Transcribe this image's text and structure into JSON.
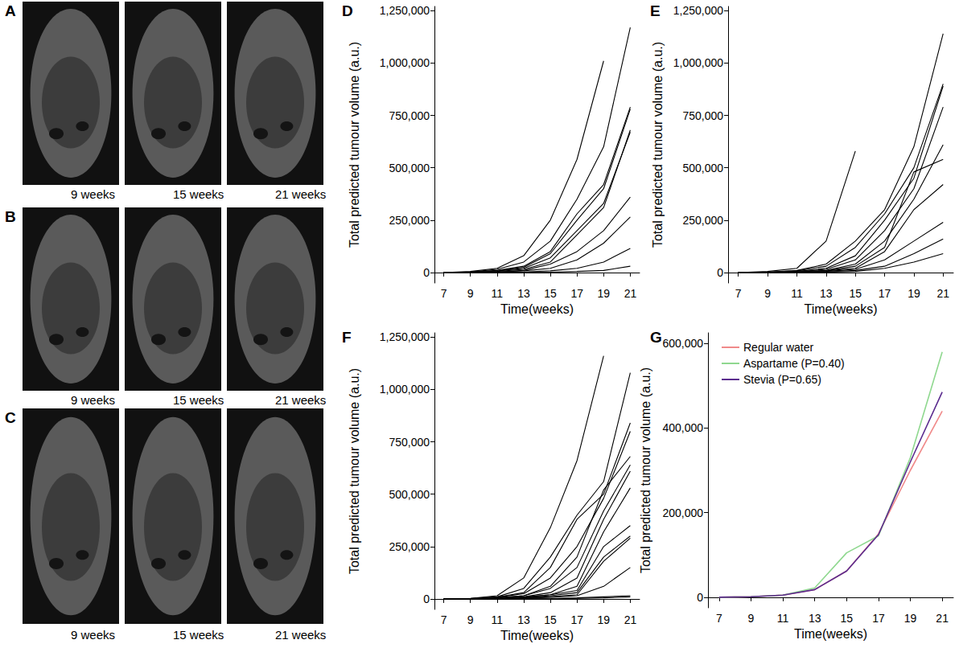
{
  "images": [
    {
      "title": "A",
      "labels": [
        "9 weeks",
        "15 weeks",
        "21 weeks"
      ]
    },
    {
      "title": "B",
      "labels": [
        "9 weeks",
        "15 weeks",
        "21 weeks"
      ]
    },
    {
      "title": "C",
      "labels": [
        "9 weeks",
        "15 weeks",
        "21 weeks"
      ]
    }
  ],
  "chart_data": [
    {
      "type": "line",
      "title": "D",
      "x_label": "Time(weeks)",
      "y_label": "Total predicted tumour volume (a.u.)",
      "color": "#000000",
      "grid": false,
      "x": [
        7,
        9,
        11,
        13,
        15,
        17,
        19,
        21
      ],
      "xlim": [
        6.3,
        21.7
      ],
      "xticks": [
        7,
        9,
        11,
        13,
        15,
        17,
        19,
        21
      ],
      "ylim": [
        -50000,
        1270000
      ],
      "yticks": [
        0,
        {
          "value": 250000,
          "label": "250,000"
        },
        {
          "value": 500000,
          "label": "500,000"
        },
        {
          "value": 750000,
          "label": "750,000"
        },
        {
          "value": 1000000,
          "label": "1,000,000"
        },
        {
          "value": 1250000,
          "label": "1,250,000"
        }
      ],
      "series": [
        {
          "values": [
            0,
            5000,
            20000,
            80000,
            250000,
            540000,
            1010000,
            null
          ]
        },
        {
          "values": [
            0,
            3000,
            15000,
            50000,
            150000,
            350000,
            600000,
            1170000
          ]
        },
        {
          "values": [
            0,
            2000,
            10000,
            30000,
            100000,
            280000,
            420000,
            790000
          ]
        },
        {
          "values": [
            0,
            2000,
            8000,
            25000,
            90000,
            250000,
            400000,
            780000
          ]
        },
        {
          "values": [
            0,
            2000,
            8000,
            20000,
            70000,
            200000,
            330000,
            670000
          ]
        },
        {
          "values": [
            0,
            1000,
            5000,
            15000,
            50000,
            180000,
            310000,
            680000
          ]
        },
        {
          "values": [
            0,
            1000,
            3000,
            10000,
            40000,
            100000,
            200000,
            360000
          ]
        },
        {
          "values": [
            0,
            1000,
            3000,
            8000,
            20000,
            60000,
            140000,
            265000
          ]
        },
        {
          "values": [
            0,
            0,
            1000,
            3000,
            8000,
            20000,
            50000,
            115000
          ]
        },
        {
          "values": [
            0,
            0,
            0,
            1000,
            2000,
            5000,
            10000,
            30000
          ]
        }
      ]
    },
    {
      "type": "line",
      "title": "E",
      "x_label": "Time(weeks)",
      "y_label": "Total predicted tumour volume (a.u.)",
      "color": "#000000",
      "grid": false,
      "x": [
        7,
        9,
        11,
        13,
        15,
        17,
        19,
        21
      ],
      "xlim": [
        6.3,
        21.7
      ],
      "xticks": [
        7,
        9,
        11,
        13,
        15,
        17,
        19,
        21
      ],
      "ylim": [
        -50000,
        1270000
      ],
      "yticks": [
        0,
        {
          "value": 250000,
          "label": "250,000"
        },
        {
          "value": 500000,
          "label": "500,000"
        },
        {
          "value": 750000,
          "label": "750,000"
        },
        {
          "value": 1000000,
          "label": "1,000,000"
        },
        {
          "value": 1250000,
          "label": "1,250,000"
        }
      ],
      "series": [
        {
          "values": [
            0,
            5000,
            20000,
            150000,
            580000,
            null,
            null,
            null
          ]
        },
        {
          "values": [
            0,
            2000,
            10000,
            40000,
            150000,
            300000,
            600000,
            1140000
          ]
        },
        {
          "values": [
            0,
            2000,
            8000,
            30000,
            120000,
            280000,
            500000,
            900000
          ]
        },
        {
          "values": [
            0,
            1000,
            5000,
            20000,
            80000,
            250000,
            450000,
            890000
          ]
        },
        {
          "values": [
            0,
            1000,
            5000,
            15000,
            60000,
            200000,
            400000,
            790000
          ]
        },
        {
          "values": [
            0,
            1000,
            4000,
            10000,
            40000,
            150000,
            350000,
            610000
          ]
        },
        {
          "values": [
            0,
            1000,
            3000,
            8000,
            30000,
            120000,
            480000,
            540000
          ]
        },
        {
          "values": [
            0,
            1000,
            3000,
            8000,
            20000,
            100000,
            300000,
            420000
          ]
        },
        {
          "values": [
            0,
            0,
            2000,
            5000,
            15000,
            60000,
            150000,
            240000
          ]
        },
        {
          "values": [
            0,
            0,
            1000,
            3000,
            10000,
            30000,
            90000,
            160000
          ]
        },
        {
          "values": [
            0,
            0,
            1000,
            2000,
            5000,
            20000,
            50000,
            90000
          ]
        }
      ]
    },
    {
      "type": "line",
      "title": "F",
      "x_label": "Time(weeks)",
      "y_label": "Total predicted tumour volume (a.u.)",
      "color": "#000000",
      "grid": false,
      "x": [
        7,
        9,
        11,
        13,
        15,
        17,
        19,
        21
      ],
      "xlim": [
        6.3,
        21.7
      ],
      "xticks": [
        7,
        9,
        11,
        13,
        15,
        17,
        19,
        21
      ],
      "ylim": [
        -50000,
        1270000
      ],
      "yticks": [
        0,
        {
          "value": 250000,
          "label": "250,000"
        },
        {
          "value": 500000,
          "label": "500,000"
        },
        {
          "value": 750000,
          "label": "750,000"
        },
        {
          "value": 1000000,
          "label": "1,000,000"
        },
        {
          "value": 1250000,
          "label": "1,250,000"
        }
      ],
      "series": [
        {
          "values": [
            0,
            3000,
            15000,
            100000,
            340000,
            660000,
            1160000,
            null
          ]
        },
        {
          "values": [
            0,
            2000,
            10000,
            50000,
            200000,
            400000,
            560000,
            1080000
          ]
        },
        {
          "values": [
            0,
            2000,
            8000,
            30000,
            150000,
            380000,
            500000,
            840000
          ]
        },
        {
          "values": [
            0,
            2000,
            8000,
            25000,
            100000,
            250000,
            480000,
            800000
          ]
        },
        {
          "values": [
            0,
            1000,
            5000,
            15000,
            60000,
            200000,
            520000,
            680000
          ]
        },
        {
          "values": [
            0,
            1000,
            5000,
            15000,
            50000,
            150000,
            420000,
            640000
          ]
        },
        {
          "values": [
            0,
            1000,
            4000,
            10000,
            30000,
            100000,
            380000,
            610000
          ]
        },
        {
          "values": [
            0,
            1000,
            3000,
            8000,
            20000,
            60000,
            320000,
            530000
          ]
        },
        {
          "values": [
            0,
            1000,
            3000,
            8000,
            20000,
            40000,
            250000,
            350000
          ]
        },
        {
          "values": [
            0,
            0,
            2000,
            5000,
            15000,
            30000,
            200000,
            300000
          ]
        },
        {
          "values": [
            0,
            0,
            2000,
            5000,
            10000,
            20000,
            180000,
            290000
          ]
        },
        {
          "values": [
            0,
            0,
            1000,
            3000,
            8000,
            15000,
            60000,
            150000
          ]
        },
        {
          "values": [
            0,
            0,
            0,
            1000,
            2000,
            5000,
            10000,
            15000
          ]
        },
        {
          "values": [
            0,
            0,
            0,
            0,
            1000,
            3000,
            5000,
            10000
          ]
        }
      ]
    },
    {
      "type": "line",
      "title": "G",
      "x_label": "Time(weeks)",
      "y_label": "Total predicted tumour volume (a.u.)",
      "grid": false,
      "legend": "top-left",
      "x": [
        7,
        9,
        11,
        13,
        15,
        17,
        19,
        21
      ],
      "xlim": [
        6.3,
        21.7
      ],
      "xticks": [
        7,
        9,
        11,
        13,
        15,
        17,
        19,
        21
      ],
      "ylim": [
        -25000,
        625000
      ],
      "yticks": [
        0,
        {
          "value": 200000,
          "label": "200,000"
        },
        {
          "value": 400000,
          "label": "400,000"
        },
        {
          "value": 600000,
          "label": "600,000"
        }
      ],
      "series": [
        {
          "name": "Regular water",
          "color": "#f08a8a",
          "values": [
            0,
            1000,
            5000,
            18000,
            62000,
            150000,
            300000,
            440000
          ]
        },
        {
          "name": "Aspartame (P=0.40)",
          "color": "#8fd88f",
          "values": [
            0,
            1000,
            5000,
            22000,
            105000,
            145000,
            330000,
            580000
          ]
        },
        {
          "name": "Stevia (P=0.65)",
          "color": "#5b2c8f",
          "values": [
            0,
            1000,
            5000,
            18000,
            62000,
            148000,
            320000,
            485000
          ]
        }
      ]
    }
  ]
}
